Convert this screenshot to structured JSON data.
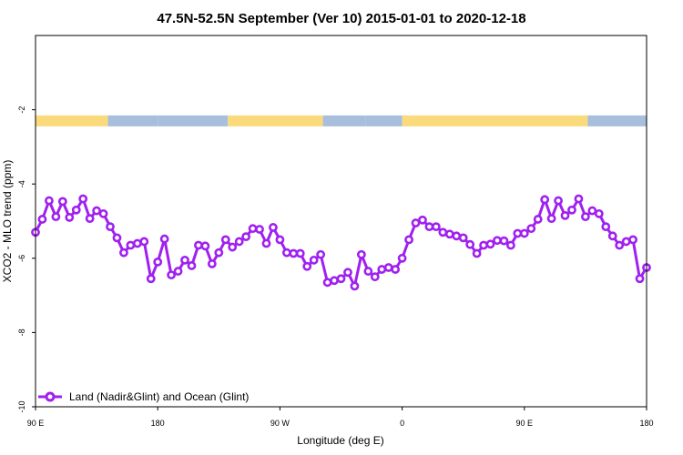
{
  "chart_data": {
    "type": "line",
    "title": "47.5N-52.5N September (Ver 10)   2015-01-01 to 2020-12-18",
    "xlabel": "Longitude (deg E)",
    "ylabel": "XCO2 - MLO trend (ppm)",
    "xlim": [
      -90,
      180
    ],
    "ylim": [
      -10,
      0
    ],
    "x_ticks": [
      {
        "value": -90,
        "label": "90 E"
      },
      {
        "value": -36,
        "label": "180"
      },
      {
        "value": 18,
        "label": "90 W"
      },
      {
        "value": 72,
        "label": "0"
      },
      {
        "value": 126,
        "label": "90 E"
      },
      {
        "value": 180,
        "label": "180"
      }
    ],
    "y_ticks": [
      -10,
      -8,
      -6,
      -4,
      -2
    ],
    "grid": false,
    "legend_position": "bottom-left",
    "surface_band": {
      "y_center": -2.3,
      "land_color": "#FADA7A",
      "ocean_color": "#A8BEDD",
      "segments": [
        {
          "from": -90,
          "to": -58,
          "type": "land"
        },
        {
          "from": -58,
          "to": -36,
          "type": "ocean"
        },
        {
          "from": -36,
          "to": -5,
          "type": "ocean"
        },
        {
          "from": -5,
          "to": 37,
          "type": "land"
        },
        {
          "from": 37,
          "to": 56,
          "type": "ocean"
        },
        {
          "from": 56,
          "to": 72,
          "type": "ocean"
        },
        {
          "from": 72,
          "to": 75,
          "type": "land"
        },
        {
          "from": 75,
          "to": 154,
          "type": "land"
        },
        {
          "from": 154,
          "to": 180,
          "type": "ocean"
        }
      ]
    },
    "series": [
      {
        "name": "Land (Nadir&Glint) and Ocean (Glint)",
        "color": "#A020F0",
        "x": [
          -90,
          -87,
          -84,
          -81,
          -78,
          -75,
          -72,
          -69,
          -66,
          -63,
          -60,
          -57,
          -54,
          -51,
          -48,
          -45,
          -42,
          -39,
          -36,
          -33,
          -30,
          -27,
          -24,
          -21,
          -18,
          -15,
          -12,
          -9,
          -6,
          -3,
          0,
          3,
          6,
          9,
          12,
          15,
          18,
          21,
          24,
          27,
          30,
          33,
          36,
          39,
          42,
          45,
          48,
          51,
          54,
          57,
          60,
          63,
          66,
          69,
          72,
          75,
          78,
          81,
          84,
          87,
          90,
          93,
          96,
          99,
          102,
          105,
          108,
          111,
          114,
          117,
          120,
          123,
          126,
          129,
          132,
          135,
          138,
          141,
          144,
          147,
          150,
          153,
          156,
          159,
          162,
          165,
          168,
          171,
          174,
          177,
          180
        ],
        "values": [
          -5.3,
          -4.95,
          -4.45,
          -4.88,
          -4.47,
          -4.9,
          -4.7,
          -4.4,
          -4.93,
          -4.72,
          -4.8,
          -5.15,
          -5.45,
          -5.85,
          -5.65,
          -5.6,
          -5.55,
          -6.55,
          -6.1,
          -5.48,
          -6.45,
          -6.35,
          -6.05,
          -6.2,
          -5.65,
          -5.67,
          -6.15,
          -5.85,
          -5.5,
          -5.7,
          -5.55,
          -5.42,
          -5.2,
          -5.22,
          -5.6,
          -5.17,
          -5.5,
          -5.85,
          -5.87,
          -5.87,
          -6.22,
          -6.05,
          -5.9,
          -6.65,
          -6.6,
          -6.55,
          -6.38,
          -6.75,
          -5.9,
          -6.35,
          -6.5,
          -6.3,
          -6.25,
          -6.3,
          -6.0,
          -5.5,
          -5.05,
          -4.97,
          -5.15,
          -5.15,
          -5.3,
          -5.35,
          -5.4,
          -5.45,
          -5.63,
          -5.87,
          -5.65,
          -5.62,
          -5.52,
          -5.53,
          -5.65,
          -5.33,
          -5.33,
          -5.2,
          -4.95,
          -4.42,
          -4.93,
          -4.45,
          -4.85,
          -4.7,
          -4.4,
          -4.88,
          -4.72,
          -4.8,
          -5.15,
          -5.4,
          -5.65,
          -5.55,
          -5.5,
          -6.55,
          -6.25
        ]
      }
    ]
  }
}
